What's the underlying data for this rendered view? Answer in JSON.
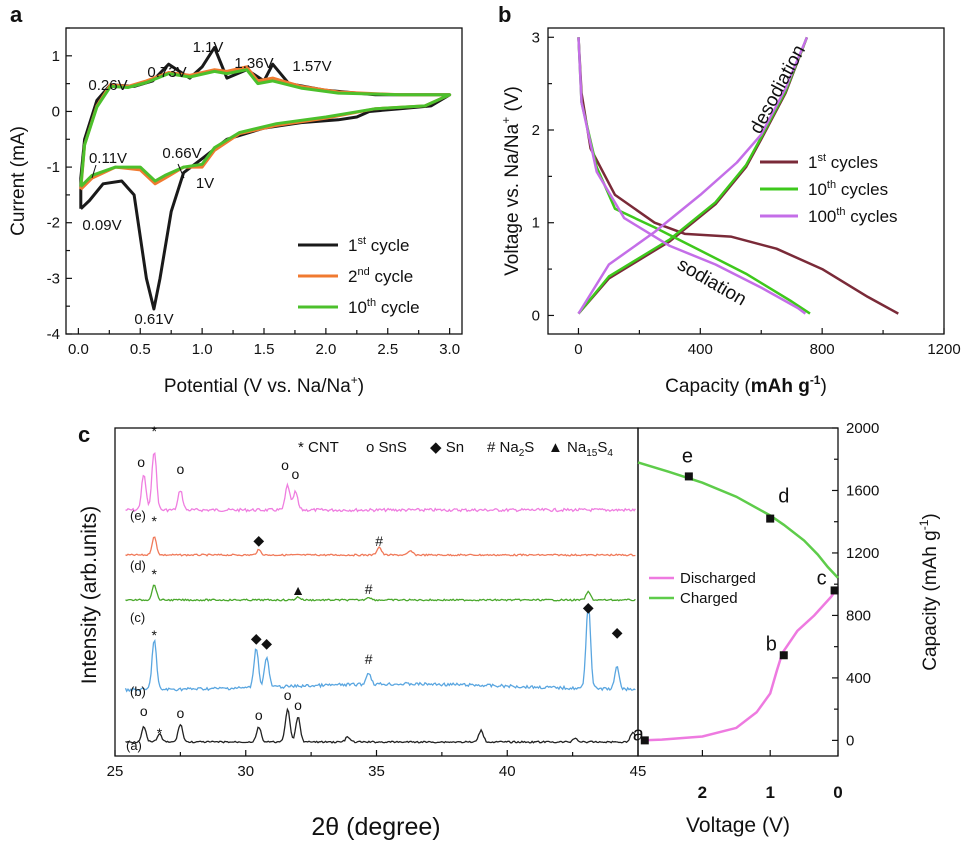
{
  "chart_data": [
    {
      "panel": "a",
      "type": "line",
      "xlabel_main": "Potential (V vs. Na/Na",
      "xlabel_sup": "+",
      "xlabel_tail": ")",
      "ylabel": "Current (mA)",
      "xlim": [
        -0.1,
        3.1
      ],
      "ylim": [
        -4,
        1.5
      ],
      "xticks": [
        "0.0",
        "0.5",
        "1.0",
        "1.5",
        "2.0",
        "2.5",
        "3.0"
      ],
      "yticks": [
        "-4",
        "-3",
        "-2",
        "-1",
        "0",
        "1"
      ],
      "legend": [
        {
          "base": "1",
          "sup": "st",
          "tail": " cycle",
          "color": "#1a1a1a"
        },
        {
          "base": "2",
          "sup": "nd",
          "tail": " cycle",
          "color": "#f07a30"
        },
        {
          "base": "10",
          "sup": "th",
          "tail": " cycle",
          "color": "#4cc02c"
        }
      ],
      "annotations": [
        "0.26V",
        "0.73V",
        "1.1V",
        "1.36V",
        "1.57V",
        "0.11V",
        "0.66V",
        "1V",
        "0.09V",
        "0.61V"
      ],
      "series": [
        {
          "name": "1st cycle",
          "color": "#1a1a1a",
          "points": [
            [
              0.02,
              -1.75
            ],
            [
              0.09,
              -1.6
            ],
            [
              0.2,
              -1.3
            ],
            [
              0.35,
              -1.25
            ],
            [
              0.45,
              -1.5
            ],
            [
              0.55,
              -3.0
            ],
            [
              0.61,
              -3.55
            ],
            [
              0.66,
              -3.0
            ],
            [
              0.75,
              -1.8
            ],
            [
              0.85,
              -1.1
            ],
            [
              1.0,
              -0.85
            ],
            [
              1.2,
              -0.5
            ],
            [
              1.5,
              -0.3
            ],
            [
              1.8,
              -0.2
            ],
            [
              2.1,
              -0.15
            ],
            [
              2.25,
              -0.1
            ],
            [
              2.35,
              0.0
            ],
            [
              2.6,
              0.05
            ],
            [
              2.85,
              0.1
            ],
            [
              3.0,
              0.3
            ],
            [
              2.8,
              0.3
            ],
            [
              2.4,
              0.3
            ],
            [
              2.0,
              0.38
            ],
            [
              1.7,
              0.5
            ],
            [
              1.57,
              0.85
            ],
            [
              1.5,
              0.55
            ],
            [
              1.36,
              0.75
            ],
            [
              1.2,
              0.6
            ],
            [
              1.1,
              1.15
            ],
            [
              1.0,
              0.8
            ],
            [
              0.9,
              0.6
            ],
            [
              0.73,
              0.85
            ],
            [
              0.6,
              0.55
            ],
            [
              0.45,
              0.45
            ],
            [
              0.26,
              0.48
            ],
            [
              0.15,
              0.2
            ],
            [
              0.05,
              -0.5
            ],
            [
              0.02,
              -1.2
            ],
            [
              0.02,
              -1.75
            ]
          ]
        },
        {
          "name": "2nd cycle",
          "color": "#f07a30",
          "points": [
            [
              0.02,
              -1.4
            ],
            [
              0.11,
              -1.2
            ],
            [
              0.3,
              -1.0
            ],
            [
              0.5,
              -1.05
            ],
            [
              0.62,
              -1.3
            ],
            [
              0.7,
              -1.2
            ],
            [
              0.85,
              -1.0
            ],
            [
              1.0,
              -1.0
            ],
            [
              1.1,
              -0.7
            ],
            [
              1.3,
              -0.4
            ],
            [
              1.6,
              -0.25
            ],
            [
              2.0,
              -0.12
            ],
            [
              2.4,
              0.05
            ],
            [
              2.8,
              0.1
            ],
            [
              3.0,
              0.3
            ],
            [
              2.6,
              0.3
            ],
            [
              2.1,
              0.35
            ],
            [
              1.8,
              0.45
            ],
            [
              1.57,
              0.6
            ],
            [
              1.45,
              0.55
            ],
            [
              1.36,
              0.8
            ],
            [
              1.2,
              0.72
            ],
            [
              1.1,
              0.75
            ],
            [
              0.9,
              0.65
            ],
            [
              0.73,
              0.7
            ],
            [
              0.55,
              0.55
            ],
            [
              0.4,
              0.45
            ],
            [
              0.26,
              0.48
            ],
            [
              0.15,
              0.1
            ],
            [
              0.05,
              -0.6
            ],
            [
              0.02,
              -1.4
            ]
          ]
        },
        {
          "name": "10th cycle",
          "color": "#4cc02c",
          "points": [
            [
              0.02,
              -1.35
            ],
            [
              0.11,
              -1.15
            ],
            [
              0.3,
              -1.0
            ],
            [
              0.5,
              -1.0
            ],
            [
              0.62,
              -1.25
            ],
            [
              0.7,
              -1.15
            ],
            [
              0.85,
              -1.0
            ],
            [
              1.0,
              -0.95
            ],
            [
              1.1,
              -0.65
            ],
            [
              1.3,
              -0.38
            ],
            [
              1.6,
              -0.22
            ],
            [
              2.0,
              -0.1
            ],
            [
              2.4,
              0.05
            ],
            [
              2.8,
              0.1
            ],
            [
              3.0,
              0.3
            ],
            [
              2.6,
              0.3
            ],
            [
              2.1,
              0.33
            ],
            [
              1.8,
              0.42
            ],
            [
              1.57,
              0.55
            ],
            [
              1.45,
              0.5
            ],
            [
              1.36,
              0.75
            ],
            [
              1.2,
              0.68
            ],
            [
              1.1,
              0.72
            ],
            [
              0.9,
              0.62
            ],
            [
              0.73,
              0.68
            ],
            [
              0.55,
              0.52
            ],
            [
              0.4,
              0.43
            ],
            [
              0.26,
              0.45
            ],
            [
              0.15,
              0.08
            ],
            [
              0.05,
              -0.6
            ],
            [
              0.02,
              -1.35
            ]
          ]
        }
      ]
    },
    {
      "panel": "b",
      "type": "line",
      "xlabel_main": "Capacity (",
      "xlabel_bold": "mAh g",
      "xlabel_sup": "-1",
      "xlabel_tail": ")",
      "ylabel_main": "Voltage vs. Na/Na",
      "ylabel_sup": "+",
      "ylabel_tail": " (V)",
      "xlim": [
        -100,
        1200
      ],
      "ylim": [
        -0.2,
        3.1
      ],
      "xticks": [
        "0",
        "400",
        "800",
        "1200"
      ],
      "yticks": [
        "0",
        "1",
        "2",
        "3"
      ],
      "annotations": [
        "desodiation",
        "sodiation"
      ],
      "legend": [
        {
          "base": "1",
          "sup": "st",
          "tail": " cycles",
          "color": "#7a2a38"
        },
        {
          "base": "10",
          "sup": "th",
          "tail": " cycles",
          "color": "#3ec81c"
        },
        {
          "base": "100",
          "sup": "th",
          "tail": " cycles",
          "color": "#c46ee8"
        }
      ],
      "series": [
        {
          "name": "1st sodiation",
          "color": "#7a2a38",
          "points": [
            [
              0,
              3.0
            ],
            [
              10,
              2.4
            ],
            [
              40,
              1.8
            ],
            [
              120,
              1.3
            ],
            [
              250,
              1.0
            ],
            [
              350,
              0.88
            ],
            [
              500,
              0.85
            ],
            [
              650,
              0.72
            ],
            [
              800,
              0.5
            ],
            [
              950,
              0.2
            ],
            [
              1050,
              0.02
            ]
          ]
        },
        {
          "name": "1st desodiation",
          "color": "#7a2a38",
          "points": [
            [
              0,
              0.02
            ],
            [
              100,
              0.4
            ],
            [
              300,
              0.8
            ],
            [
              450,
              1.2
            ],
            [
              550,
              1.6
            ],
            [
              600,
              1.9
            ],
            [
              680,
              2.4
            ],
            [
              750,
              3.0
            ]
          ]
        },
        {
          "name": "10th sodiation",
          "color": "#3ec81c",
          "points": [
            [
              0,
              3.0
            ],
            [
              10,
              2.3
            ],
            [
              60,
              1.6
            ],
            [
              120,
              1.15
            ],
            [
              250,
              0.95
            ],
            [
              400,
              0.7
            ],
            [
              550,
              0.45
            ],
            [
              700,
              0.15
            ],
            [
              760,
              0.02
            ]
          ]
        },
        {
          "name": "10th desodiation",
          "color": "#3ec81c",
          "points": [
            [
              0,
              0.02
            ],
            [
              100,
              0.42
            ],
            [
              300,
              0.82
            ],
            [
              450,
              1.22
            ],
            [
              550,
              1.62
            ],
            [
              600,
              1.92
            ],
            [
              680,
              2.42
            ],
            [
              750,
              3.0
            ]
          ]
        },
        {
          "name": "100th sodiation",
          "color": "#c46ee8",
          "points": [
            [
              0,
              3.0
            ],
            [
              10,
              2.3
            ],
            [
              60,
              1.55
            ],
            [
              150,
              1.05
            ],
            [
              300,
              0.75
            ],
            [
              450,
              0.55
            ],
            [
              600,
              0.3
            ],
            [
              720,
              0.08
            ],
            [
              745,
              0.02
            ]
          ]
        },
        {
          "name": "100th desodiation",
          "color": "#c46ee8",
          "points": [
            [
              0,
              0.02
            ],
            [
              100,
              0.55
            ],
            [
              250,
              0.9
            ],
            [
              400,
              1.3
            ],
            [
              520,
              1.65
            ],
            [
              600,
              1.95
            ],
            [
              680,
              2.45
            ],
            [
              750,
              3.0
            ]
          ]
        }
      ]
    },
    {
      "panel": "c",
      "type": "line",
      "xlabel": "2θ (degree)",
      "ylabel": "Intensity (arb.units)",
      "xlim": [
        25,
        45
      ],
      "xticks": [
        "25",
        "30",
        "35",
        "40",
        "45"
      ],
      "legend_items": [
        "* CNT",
        "o SnS",
        "◆ Sn",
        "# Na",
        "▲ Na"
      ],
      "legend_subs": [
        "",
        "",
        "",
        "2",
        "15"
      ],
      "legend_tail": [
        "",
        "",
        "",
        "S",
        "S"
      ],
      "legend_tail_sub": [
        "",
        "",
        "",
        "",
        "4"
      ],
      "trace_labels": [
        "(e)",
        "(d)",
        "(c)",
        "(b)",
        "(a)"
      ],
      "series": [
        {
          "name": "(e)",
          "color": "#ef7ee0",
          "offset": 510,
          "peaks": [
            [
              26.1,
              35
            ],
            [
              26.5,
              60
            ],
            [
              27.5,
              20
            ],
            [
              31.6,
              25
            ],
            [
              31.9,
              18
            ]
          ]
        },
        {
          "name": "(d)",
          "color": "#f07a5a",
          "offset": 555,
          "peaks": [
            [
              26.5,
              18
            ],
            [
              30.5,
              5
            ],
            [
              35.1,
              8
            ],
            [
              36.3,
              4
            ]
          ]
        },
        {
          "name": "(c)",
          "color": "#4aa82c",
          "offset": 600,
          "peaks": [
            [
              26.5,
              15
            ],
            [
              32.0,
              3
            ],
            [
              34.7,
              3
            ],
            [
              43.1,
              8
            ]
          ]
        },
        {
          "name": "(b)",
          "color": "#5aa6e0",
          "offset": 690,
          "peaks": [
            [
              26.5,
              50
            ],
            [
              30.4,
              40
            ],
            [
              30.8,
              30
            ],
            [
              34.7,
              12
            ],
            [
              43.1,
              85
            ],
            [
              44.2,
              22
            ]
          ]
        },
        {
          "name": "(a)",
          "color": "#222222",
          "offset": 742,
          "peaks": [
            [
              26.1,
              15
            ],
            [
              26.7,
              8
            ],
            [
              27.5,
              18
            ],
            [
              30.5,
              15
            ],
            [
              31.6,
              33
            ],
            [
              32.0,
              25
            ],
            [
              33.9,
              5
            ],
            [
              39.0,
              12
            ],
            [
              42.6,
              4
            ],
            [
              44.8,
              10
            ]
          ]
        }
      ]
    },
    {
      "panel": "c-right",
      "type": "line",
      "xlabel": "Voltage (V)",
      "ylabel_main": "Capacity (mAh g",
      "ylabel_sup": "-1",
      "ylabel_tail": ")",
      "xlim": [
        2.95,
        0
      ],
      "ylim": [
        -100,
        2000
      ],
      "xticks": [
        "2",
        "1",
        "0"
      ],
      "yticks": [
        "0",
        "400",
        "800",
        "1200",
        "1600",
        "2000"
      ],
      "legend": [
        {
          "label": "Discharged",
          "color": "#ee7ae0"
        },
        {
          "label": "Charged",
          "color": "#5ecc4a"
        }
      ],
      "discharged": [
        [
          2.9,
          0
        ],
        [
          2.6,
          5
        ],
        [
          2.0,
          25
        ],
        [
          1.5,
          80
        ],
        [
          1.2,
          180
        ],
        [
          1.0,
          300
        ],
        [
          0.9,
          450
        ],
        [
          0.82,
          560
        ],
        [
          0.6,
          700
        ],
        [
          0.35,
          800
        ],
        [
          0.1,
          920
        ],
        [
          0,
          980
        ]
      ],
      "charged": [
        [
          0,
          1040
        ],
        [
          0.15,
          1110
        ],
        [
          0.3,
          1190
        ],
        [
          0.5,
          1280
        ],
        [
          0.8,
          1380
        ],
        [
          1.0,
          1440
        ],
        [
          1.5,
          1560
        ],
        [
          2.0,
          1650
        ],
        [
          2.5,
          1720
        ],
        [
          2.95,
          1780
        ]
      ],
      "points": [
        {
          "label": "a",
          "v": 2.85,
          "c": 0
        },
        {
          "label": "b",
          "v": 0.8,
          "c": 545
        },
        {
          "label": "c",
          "v": 0.05,
          "c": 960
        },
        {
          "label": "d",
          "v": 1.0,
          "c": 1420
        },
        {
          "label": "e",
          "v": 2.2,
          "c": 1690
        }
      ]
    }
  ]
}
